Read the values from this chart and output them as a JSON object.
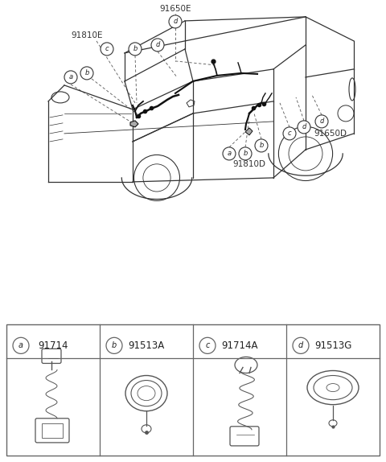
{
  "bg_color": "#ffffff",
  "fig_width": 4.8,
  "fig_height": 5.74,
  "dpi": 100,
  "part_labels": [
    {
      "letter": "a",
      "part_num": "91714",
      "col": 0
    },
    {
      "letter": "b",
      "part_num": "91513A",
      "col": 1
    },
    {
      "letter": "c",
      "part_num": "91714A",
      "col": 2
    },
    {
      "letter": "d",
      "part_num": "91513G",
      "col": 3
    }
  ],
  "line_color": "#333333",
  "wire_color": "#111111",
  "label_color": "#333333",
  "table_line_color": "#666666",
  "part_draw_color": "#555555"
}
